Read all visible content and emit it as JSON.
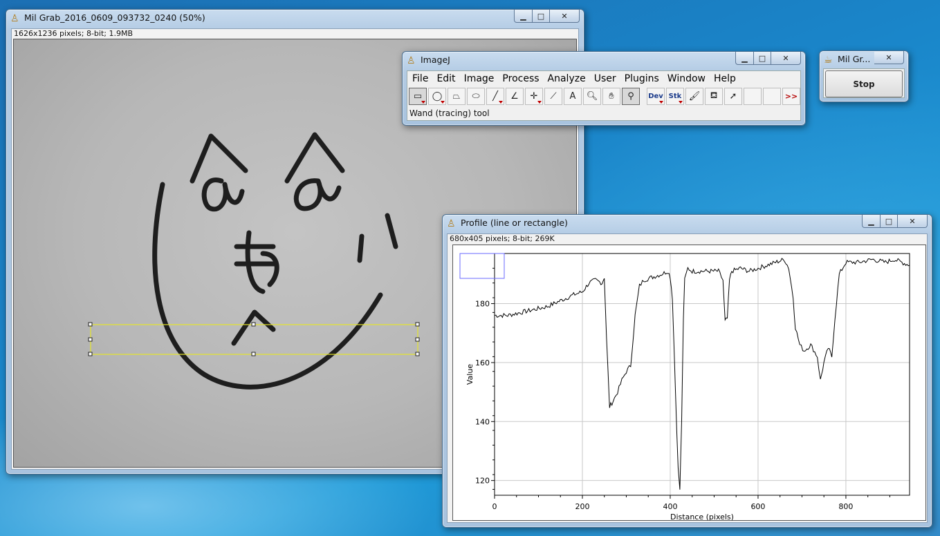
{
  "main_window": {
    "title": "Mil Grab_2016_0609_093732_0240 (50%)",
    "info": "1626x1236 pixels; 8-bit; 1.9MB",
    "buttons": {
      "minimize": "▁",
      "maximize": "□",
      "close": "✕"
    }
  },
  "imagej": {
    "title": "ImageJ",
    "menus": [
      "File",
      "Edit",
      "Image",
      "Process",
      "Analyze",
      "User",
      "Plugins",
      "Window",
      "Help"
    ],
    "tools": [
      {
        "name": "rectangle-tool-icon",
        "glyph": "▭",
        "dropdown": true,
        "selected": true
      },
      {
        "name": "oval-tool-icon",
        "glyph": "◯",
        "dropdown": true
      },
      {
        "name": "polygon-tool-icon",
        "glyph": "⏢",
        "dropdown": false
      },
      {
        "name": "freehand-tool-icon",
        "glyph": "⬭",
        "dropdown": false
      },
      {
        "name": "line-tool-icon",
        "glyph": "╱",
        "dropdown": true
      },
      {
        "name": "angle-tool-icon",
        "glyph": "∠",
        "dropdown": false
      },
      {
        "name": "point-tool-icon",
        "glyph": "✛",
        "dropdown": true
      },
      {
        "name": "wand-tool-icon",
        "glyph": "⟋",
        "dropdown": false
      },
      {
        "name": "text-tool-icon",
        "glyph": "A",
        "dropdown": false
      },
      {
        "name": "magnifier-tool-icon",
        "glyph": "🔍︎",
        "dropdown": false
      },
      {
        "name": "hand-tool-icon",
        "glyph": "✋︎",
        "dropdown": false
      },
      {
        "name": "dropper-tool-icon",
        "glyph": "⚲",
        "dropdown": false,
        "selected": true
      },
      {
        "name": "developer-menu-icon",
        "glyph": "Dev",
        "dropdown": true,
        "text": true
      },
      {
        "name": "stack-tools-icon",
        "glyph": "Stk",
        "dropdown": true,
        "text": true
      },
      {
        "name": "brush-tool-icon",
        "glyph": "🖌︎",
        "dropdown": false
      },
      {
        "name": "flood-fill-icon",
        "glyph": "⛾",
        "dropdown": false
      },
      {
        "name": "arrow-tool-icon",
        "glyph": "➚",
        "dropdown": false
      },
      {
        "name": "empty-slot-icon",
        "glyph": "",
        "dropdown": false
      },
      {
        "name": "empty-slot-icon",
        "glyph": "",
        "dropdown": false
      },
      {
        "name": "more-tools-icon",
        "glyph": ">>",
        "dropdown": false,
        "more": true
      }
    ],
    "status": "Wand (tracing) tool"
  },
  "small_window": {
    "title": "Mil Gr...",
    "stop_label": "Stop"
  },
  "profile_window": {
    "title": "Profile (line or rectangle)",
    "info": "680x405 pixels; 8-bit; 269K"
  },
  "chart_data": {
    "type": "line",
    "title": "",
    "xlabel": "Distance (pixels)",
    "ylabel": "Value",
    "xlim": [
      0,
      945
    ],
    "ylim": [
      115,
      197
    ],
    "xticks": [
      0,
      200,
      400,
      600,
      800
    ],
    "yticks": [
      120,
      140,
      160,
      180
    ],
    "grid": true,
    "series": [
      {
        "x": [
          0,
          30,
          60,
          90,
          120,
          150,
          180,
          200,
          215,
          230,
          245,
          250,
          255,
          262,
          270,
          280,
          290,
          300,
          310,
          320,
          330,
          340,
          360,
          380,
          395,
          400,
          405,
          412,
          418,
          422,
          426,
          430,
          433,
          440,
          450,
          470,
          490,
          510,
          520,
          525,
          530,
          535,
          540,
          560,
          580,
          600,
          620,
          640,
          660,
          670,
          680,
          685,
          695,
          705,
          720,
          735,
          742,
          750,
          760,
          768,
          775,
          785,
          800,
          830,
          860,
          890,
          910,
          945
        ],
        "y": [
          176,
          176,
          177,
          178,
          179,
          181,
          183,
          184,
          187,
          188,
          187,
          189,
          168,
          145,
          147,
          150,
          154,
          157,
          159,
          176,
          186,
          188,
          189,
          190,
          191,
          189,
          182,
          150,
          124,
          117,
          140,
          175,
          188,
          192,
          191,
          191,
          191,
          191,
          188,
          174,
          175,
          188,
          191,
          192,
          191,
          192,
          193,
          194,
          195,
          192,
          182,
          172,
          166,
          164,
          166,
          162,
          154,
          160,
          165,
          162,
          175,
          190,
          194,
          194,
          195,
          194,
          195,
          193
        ]
      }
    ]
  }
}
